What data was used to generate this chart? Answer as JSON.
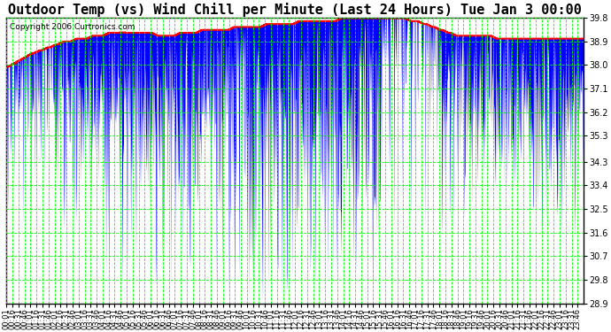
{
  "title": "Outdoor Temp (vs) Wind Chill per Minute (Last 24 Hours) Tue Jan 3 00:00",
  "copyright": "Copyright 2006 Curtronics.com",
  "bg_color": "#ffffff",
  "plot_bg_color": "#ffffff",
  "grid_color": "#00ff00",
  "outdoor_temp_color": "#ff0000",
  "wind_chill_color": "#0000ff",
  "ylim": [
    28.9,
    39.8
  ],
  "yticks": [
    28.9,
    29.8,
    30.7,
    31.6,
    32.5,
    33.4,
    34.3,
    35.3,
    36.2,
    37.1,
    38.0,
    38.9,
    39.8
  ],
  "title_fontsize": 11,
  "tick_fontsize": 7,
  "n_minutes": 1440
}
